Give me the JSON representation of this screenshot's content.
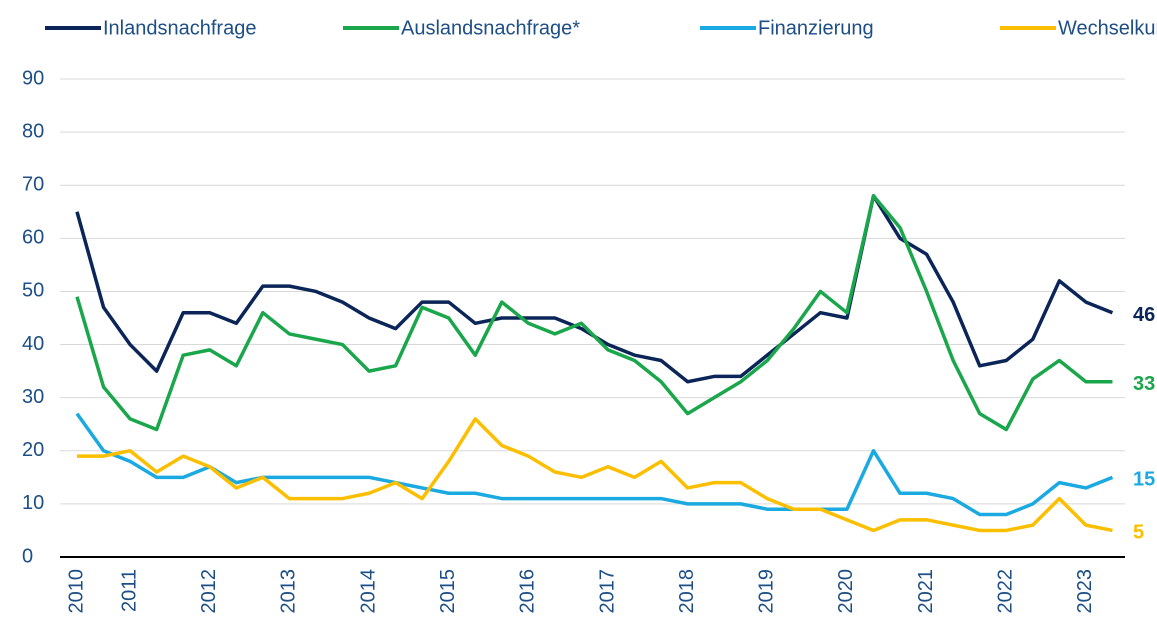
{
  "chart_data": {
    "type": "line",
    "categories": [
      "2010",
      null,
      "2011",
      null,
      null,
      "2012",
      null,
      null,
      "2013",
      null,
      null,
      "2014",
      null,
      null,
      "2015",
      null,
      null,
      "2016",
      null,
      null,
      "2017",
      null,
      null,
      "2018",
      null,
      null,
      "2019",
      null,
      null,
      "2020",
      null,
      null,
      "2021",
      null,
      null,
      "2022",
      null,
      null,
      "2023",
      null
    ],
    "series": [
      {
        "name": "Inlandsnachfrage",
        "color": "#0b2559",
        "values": [
          65,
          47,
          40,
          35,
          46,
          46,
          44,
          51,
          51,
          50,
          48,
          45,
          43,
          48,
          48,
          44,
          45,
          45,
          45,
          43,
          40,
          38,
          37,
          33,
          34,
          34,
          38,
          42,
          46,
          45,
          68,
          60,
          57,
          48,
          36,
          37,
          41,
          52,
          48,
          46
        ]
      },
      {
        "name": "Auslandsnachfrage*",
        "color": "#1aa64a",
        "values": [
          49,
          32,
          26,
          24,
          38,
          39,
          36,
          46,
          42,
          41,
          40,
          35,
          36,
          47,
          45,
          38,
          48,
          44,
          42,
          44,
          39,
          37,
          33,
          27,
          30,
          33,
          37,
          43,
          50,
          46,
          68,
          62,
          50,
          37,
          27,
          24,
          33.5,
          37,
          33,
          33
        ]
      },
      {
        "name": "Finanzierung",
        "color": "#1ba9e1",
        "values": [
          27,
          20,
          18,
          15,
          15,
          17,
          14,
          15,
          15,
          15,
          15,
          15,
          14,
          13,
          12,
          12,
          11,
          11,
          11,
          11,
          11,
          11,
          11,
          10,
          10,
          10,
          9,
          9,
          9,
          9,
          20,
          12,
          12,
          11,
          8,
          8,
          10,
          14,
          13,
          15
        ]
      },
      {
        "name": "Wechselkurs*",
        "color": "#fbbf00",
        "values": [
          19,
          19,
          20,
          16,
          19,
          17,
          13,
          15,
          11,
          11,
          11,
          12,
          14,
          11,
          18,
          26,
          21,
          19,
          16,
          15,
          17,
          15,
          18,
          13,
          14,
          14,
          11,
          9,
          9,
          7,
          5,
          7,
          7,
          6,
          5,
          5,
          6,
          11,
          6,
          5
        ]
      }
    ],
    "ylim": [
      0,
      90
    ],
    "yticks": [
      0,
      10,
      20,
      30,
      40,
      50,
      60,
      70,
      80,
      90
    ],
    "grid": true,
    "legend": "top"
  }
}
